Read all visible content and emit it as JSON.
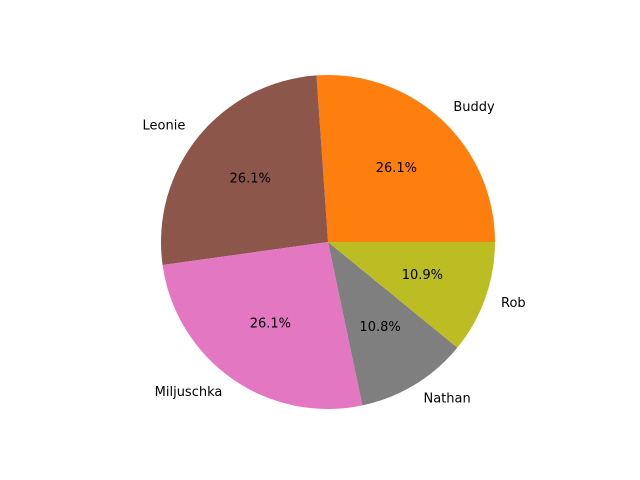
{
  "chart_data": {
    "type": "pie",
    "categories": [
      "Buddy",
      "Leonie",
      "Miljuschka",
      "Nathan",
      "Rob"
    ],
    "values": [
      26.1,
      26.1,
      26.1,
      10.8,
      10.9
    ],
    "percent_labels": [
      "26.1%",
      "26.1%",
      "26.1%",
      "10.8%",
      "10.9%"
    ],
    "colors": [
      "#ff7f0e",
      "#8c564b",
      "#e377c2",
      "#7f7f7f",
      "#bcbd22"
    ],
    "start_angle_deg": 0,
    "direction": "counterclockwise"
  }
}
